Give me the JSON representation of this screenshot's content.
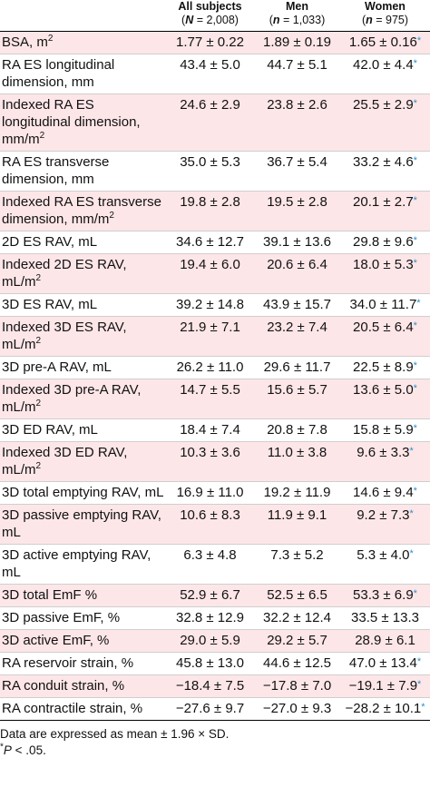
{
  "header": {
    "col0": "",
    "col1_title": "All subjects",
    "col1_n": "(N = 2,008)",
    "col2_title": "Men",
    "col2_n": "(n = 1,033)",
    "col3_title": "Women",
    "col3_n": "(n = 975)"
  },
  "rows": [
    {
      "label": "BSA, m²",
      "all": "1.77 ± 0.22",
      "men": "1.89 ± 0.19",
      "women": "1.65 ± 0.16",
      "sig": true,
      "shade": "pink"
    },
    {
      "label": "RA ES longitudinal dimension, mm",
      "all": "43.4 ± 5.0",
      "men": "44.7 ± 5.1",
      "women": "42.0 ± 4.4",
      "sig": true,
      "shade": "white"
    },
    {
      "label": "Indexed RA ES longitudinal dimension, mm/m²",
      "all": "24.6 ± 2.9",
      "men": "23.8 ± 2.6",
      "women": "25.5 ± 2.9",
      "sig": true,
      "shade": "pink"
    },
    {
      "label": "RA ES transverse dimension, mm",
      "all": "35.0 ± 5.3",
      "men": "36.7 ± 5.4",
      "women": "33.2 ± 4.6",
      "sig": true,
      "shade": "white"
    },
    {
      "label": "Indexed RA ES transverse dimension, mm/m²",
      "all": "19.8 ± 2.8",
      "men": "19.5 ± 2.8",
      "women": "20.1 ± 2.7",
      "sig": true,
      "shade": "pink"
    },
    {
      "label": "2D ES RAV, mL",
      "all": "34.6 ± 12.7",
      "men": "39.1 ± 13.6",
      "women": "29.8 ± 9.6",
      "sig": true,
      "shade": "white"
    },
    {
      "label": "Indexed 2D ES RAV, mL/m²",
      "all": "19.4 ± 6.0",
      "men": "20.6 ± 6.4",
      "women": "18.0 ± 5.3",
      "sig": true,
      "shade": "pink"
    },
    {
      "label": "3D ES RAV, mL",
      "all": "39.2 ± 14.8",
      "men": "43.9 ± 15.7",
      "women": "34.0 ± 11.7",
      "sig": true,
      "shade": "white"
    },
    {
      "label": "Indexed 3D ES RAV, mL/m²",
      "all": "21.9 ± 7.1",
      "men": "23.2 ± 7.4",
      "women": "20.5 ± 6.4",
      "sig": true,
      "shade": "pink"
    },
    {
      "label": "3D pre-A RAV, mL",
      "all": "26.2 ± 11.0",
      "men": "29.6 ± 11.7",
      "women": "22.5 ± 8.9",
      "sig": true,
      "shade": "white"
    },
    {
      "label": "Indexed 3D pre-A RAV, mL/m²",
      "all": "14.7 ± 5.5",
      "men": "15.6 ± 5.7",
      "women": "13.6 ± 5.0",
      "sig": true,
      "shade": "pink"
    },
    {
      "label": "3D ED RAV, mL",
      "all": "18.4 ± 7.4",
      "men": "20.8 ± 7.8",
      "women": "15.8 ± 5.9",
      "sig": true,
      "shade": "white"
    },
    {
      "label": "Indexed 3D ED RAV, mL/m²",
      "all": "10.3 ± 3.6",
      "men": "11.0 ± 3.8",
      "women": "9.6 ± 3.3",
      "sig": true,
      "shade": "pink"
    },
    {
      "label": "3D total emptying RAV, mL",
      "all": "16.9 ± 11.0",
      "men": "19.2 ± 11.9",
      "women": "14.6 ± 9.4",
      "sig": true,
      "shade": "white"
    },
    {
      "label": "3D passive emptying RAV, mL",
      "all": "10.6 ± 8.3",
      "men": "11.9 ± 9.1",
      "women": "9.2 ± 7.3",
      "sig": true,
      "shade": "pink"
    },
    {
      "label": "3D active emptying RAV, mL",
      "all": "6.3 ± 4.8",
      "men": "7.3 ± 5.2",
      "women": "5.3 ± 4.0",
      "sig": true,
      "shade": "white"
    },
    {
      "label": "3D total EmF %",
      "all": "52.9 ± 6.7",
      "men": "52.5 ± 6.5",
      "women": "53.3 ± 6.9",
      "sig": true,
      "shade": "pink"
    },
    {
      "label": "3D passive EmF, %",
      "all": "32.8 ± 12.9",
      "men": "32.2 ± 12.4",
      "women": "33.5 ± 13.3",
      "sig": false,
      "shade": "white"
    },
    {
      "label": "3D active EmF, %",
      "all": "29.0 ± 5.9",
      "men": "29.2 ± 5.7",
      "women": "28.9 ± 6.1",
      "sig": false,
      "shade": "pink"
    },
    {
      "label": "RA reservoir strain, %",
      "all": "45.8 ± 13.0",
      "men": "44.6 ± 12.5",
      "women": "47.0 ± 13.4",
      "sig": true,
      "shade": "white"
    },
    {
      "label": "RA conduit strain, %",
      "all": "−18.4 ± 7.5",
      "men": "−17.8 ± 7.0",
      "women": "−19.1 ± 7.9",
      "sig": true,
      "shade": "pink"
    },
    {
      "label": "RA contractile strain, %",
      "all": "−27.6 ± 9.7",
      "men": "−27.0 ± 9.3",
      "women": "−28.2 ± 10.1",
      "sig": true,
      "shade": "white"
    }
  ],
  "sig_marker": "*",
  "footnotes": {
    "line1": "Data are expressed as mean ± 1.96 × SD.",
    "line2_star": "*",
    "line2_p": "P",
    "line2_rest": " < .05."
  }
}
